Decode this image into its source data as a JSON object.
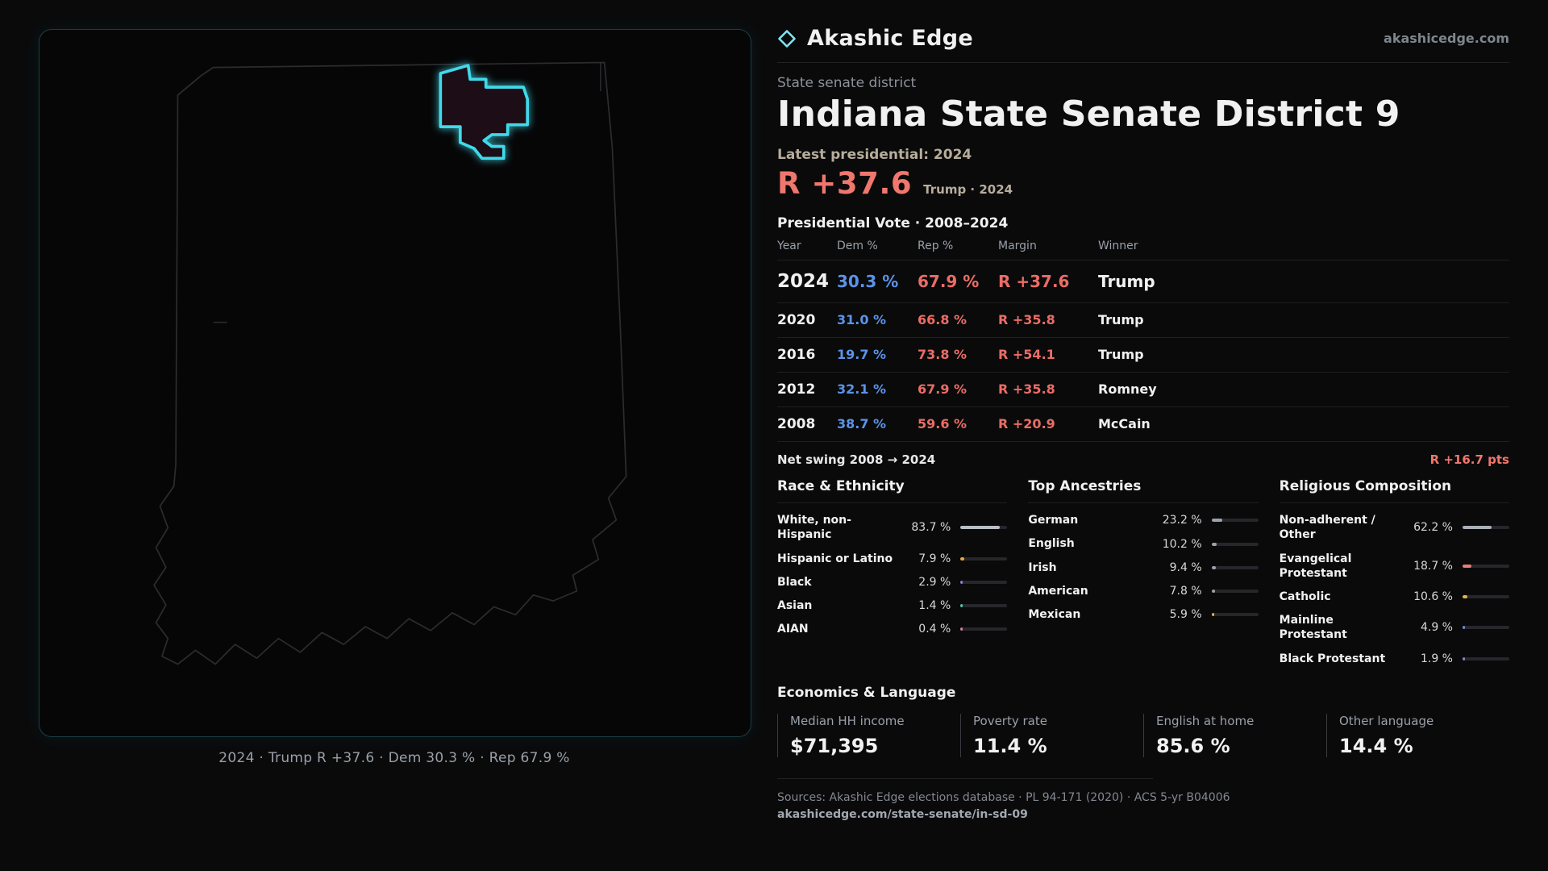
{
  "brand": {
    "name": "Akashic Edge",
    "domain": "akashicedge.com"
  },
  "page": {
    "kicker": "State senate district",
    "title": "Indiana State Senate District 9"
  },
  "latest": {
    "label": "Latest presidential: 2024",
    "value": "R +37.6",
    "detail": "Trump · 2024"
  },
  "vote_table": {
    "title": "Presidential Vote · 2008–2024",
    "columns": [
      "Year",
      "Dem %",
      "Rep %",
      "Margin",
      "Winner"
    ],
    "rows": [
      {
        "year": "2024",
        "dem": "30.3 %",
        "rep": "67.9 %",
        "margin": "R +37.6",
        "winner": "Trump"
      },
      {
        "year": "2020",
        "dem": "31.0 %",
        "rep": "66.8 %",
        "margin": "R +35.8",
        "winner": "Trump"
      },
      {
        "year": "2016",
        "dem": "19.7 %",
        "rep": "73.8 %",
        "margin": "R +54.1",
        "winner": "Trump"
      },
      {
        "year": "2012",
        "dem": "32.1 %",
        "rep": "67.9 %",
        "margin": "R +35.8",
        "winner": "Romney"
      },
      {
        "year": "2008",
        "dem": "38.7 %",
        "rep": "59.6 %",
        "margin": "R +20.9",
        "winner": "McCain"
      }
    ]
  },
  "net_swing": {
    "label": "Net swing 2008 → 2024",
    "value": "R +16.7 pts"
  },
  "demographics": {
    "race": {
      "title": "Race & Ethnicity",
      "rows": [
        {
          "label": "White, non-Hispanic",
          "value": "83.7 %",
          "pct": 83.7,
          "color": "#b9bfc8"
        },
        {
          "label": "Hispanic or Latino",
          "value": "7.9 %",
          "pct": 7.9,
          "color": "#e5a83d"
        },
        {
          "label": "Black",
          "value": "2.9 %",
          "pct": 2.9,
          "color": "#9b7bd4"
        },
        {
          "label": "Asian",
          "value": "1.4 %",
          "pct": 1.4,
          "color": "#4fc9b1"
        },
        {
          "label": "AIAN",
          "value": "0.4 %",
          "pct": 0.4,
          "color": "#d97b9e"
        }
      ]
    },
    "ancestries": {
      "title": "Top Ancestries",
      "rows": [
        {
          "label": "German",
          "value": "23.2 %",
          "pct": 23.2,
          "color": "#9aa3ad"
        },
        {
          "label": "English",
          "value": "10.2 %",
          "pct": 10.2,
          "color": "#9aa3ad"
        },
        {
          "label": "Irish",
          "value": "9.4 %",
          "pct": 9.4,
          "color": "#9aa3ad"
        },
        {
          "label": "American",
          "value": "7.8 %",
          "pct": 7.8,
          "color": "#9aa3ad"
        },
        {
          "label": "Mexican",
          "value": "5.9 %",
          "pct": 5.9,
          "color": "#e5b34d"
        }
      ]
    },
    "religion": {
      "title": "Religious Composition",
      "rows": [
        {
          "label": "Non-adherent / Other",
          "value": "62.2 %",
          "pct": 62.2,
          "color": "#aab0b8"
        },
        {
          "label": "Evangelical Protestant",
          "value": "18.7 %",
          "pct": 18.7,
          "color": "#e87d7d"
        },
        {
          "label": "Catholic",
          "value": "10.6 %",
          "pct": 10.6,
          "color": "#e5b34d"
        },
        {
          "label": "Mainline Protestant",
          "value": "4.9 %",
          "pct": 4.9,
          "color": "#6b8fe8"
        },
        {
          "label": "Black Protestant",
          "value": "1.9 %",
          "pct": 1.9,
          "color": "#9b7bd4"
        }
      ]
    }
  },
  "economics": {
    "title": "Economics & Language",
    "stats": [
      {
        "label": "Median HH income",
        "value": "$71,395"
      },
      {
        "label": "Poverty rate",
        "value": "11.4 %"
      },
      {
        "label": "English at home",
        "value": "85.6 %"
      },
      {
        "label": "Other language",
        "value": "14.4 %"
      }
    ]
  },
  "map": {
    "caption": "2024 · Trump R +37.6 · Dem 30.3 % · Rep 67.9 %"
  },
  "footer": {
    "sources": "Sources: Akashic Edge elections database · PL 94-171 (2020) · ACS 5-yr B04006",
    "permalink": "akashicedge.com/state-senate/in-sd-09"
  },
  "colors": {
    "dem": "#5b93ea",
    "rep": "#ea6d66",
    "accent": "#3fd9ea"
  }
}
